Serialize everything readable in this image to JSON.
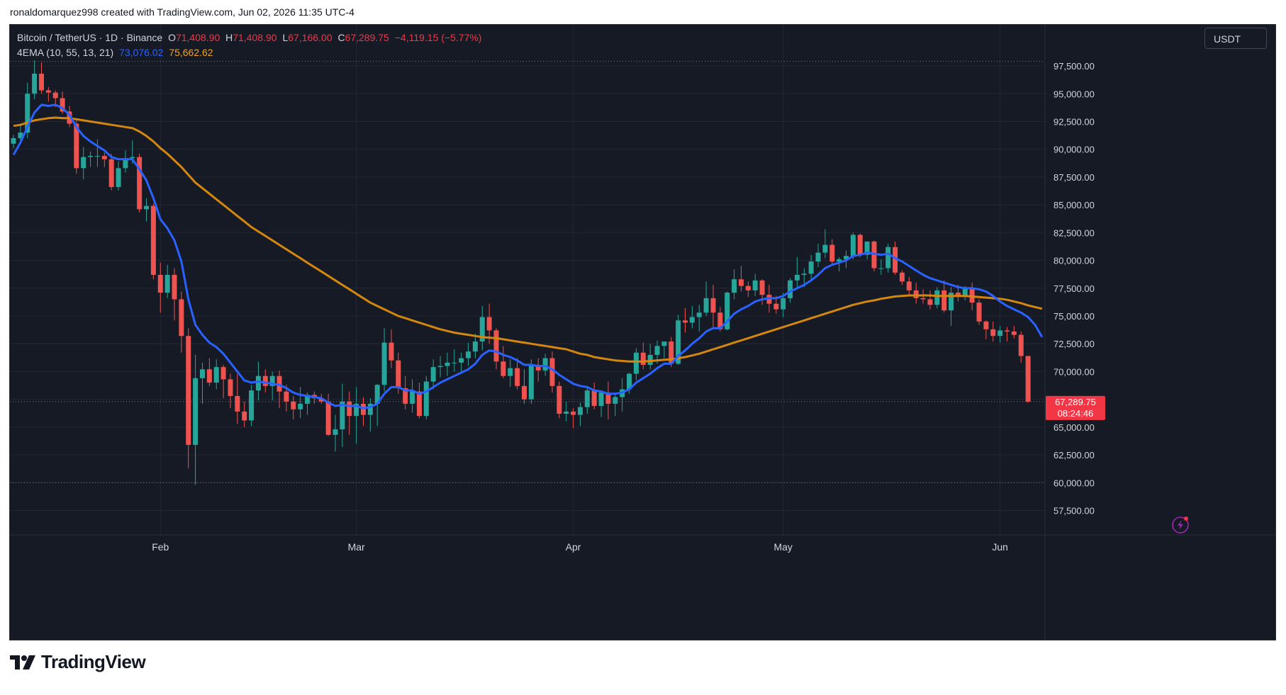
{
  "attribution": "ronaldomarquez998 created with TradingView.com, Jun 02, 2026 11:35 UTC-4",
  "brand": "TradingView",
  "currency_button": "USDT",
  "legend": {
    "symbol": "Bitcoin / TetherUS · 1D · Binance",
    "o_label": "O",
    "o_value": "71,408.90",
    "h_label": "H",
    "h_value": "71,408.90",
    "l_label": "L",
    "l_value": "67,166.00",
    "c_label": "C",
    "c_value": "67,289.75",
    "change": "−4,119.15 (−5.77%)",
    "indicator": "4EMA (10, 55, 13, 21)",
    "ema_fast_value": "73,076.02",
    "ema_slow_value": "75,662.62"
  },
  "price_label": {
    "price": "67,289.75",
    "countdown": "08:24:46"
  },
  "colors": {
    "background": "#161a25",
    "up": "#26a69a",
    "down": "#ef5350",
    "ema_fast": "#2962ff",
    "ema_slow": "#d4870f",
    "axis_text": "#d1d4dc",
    "grid": "#232734"
  },
  "icons": {
    "alert": "lightning-alert-icon",
    "logo": "tradingview-logo-icon"
  },
  "chart_data": {
    "type": "candlestick",
    "symbol": "Bitcoin / TetherUS",
    "timeframe": "1D",
    "exchange": "Binance",
    "y_ticks": [
      "97,500.00",
      "95,000.00",
      "92,500.00",
      "90,000.00",
      "87,500.00",
      "85,000.00",
      "82,500.00",
      "80,000.00",
      "77,500.00",
      "75,000.00",
      "72,500.00",
      "70,000.00",
      "67,500.00",
      "65,000.00",
      "62,500.00",
      "60,000.00",
      "57,500.00"
    ],
    "y_tick_values": [
      97500,
      95000,
      92500,
      90000,
      87500,
      85000,
      82500,
      80000,
      77500,
      75000,
      72500,
      70000,
      67500,
      65000,
      62500,
      60000,
      57500
    ],
    "ylim": [
      55300,
      101200
    ],
    "x_ticks": [
      {
        "label": "Feb",
        "index": 21
      },
      {
        "label": "Mar",
        "index": 49
      },
      {
        "label": "Apr",
        "index": 80
      },
      {
        "label": "May",
        "index": 110
      },
      {
        "label": "Jun",
        "index": 141
      }
    ],
    "dashed_lines": [
      97900,
      67289.75,
      60000
    ],
    "candles": [
      [
        90500,
        91300,
        90100,
        91000
      ],
      [
        91000,
        92300,
        90700,
        91500
      ],
      [
        91500,
        96000,
        91000,
        95000
      ],
      [
        95000,
        98000,
        94500,
        96800
      ],
      [
        96800,
        97800,
        95000,
        95300
      ],
      [
        95300,
        95600,
        94300,
        95100
      ],
      [
        95100,
        95300,
        93800,
        94600
      ],
      [
        94600,
        95200,
        93200,
        93400
      ],
      [
        93400,
        93900,
        92000,
        92300
      ],
      [
        92300,
        92600,
        87800,
        88300
      ],
      [
        88300,
        90200,
        87300,
        89300
      ],
      [
        89300,
        89800,
        88400,
        89400
      ],
      [
        89400,
        90900,
        88400,
        89400
      ],
      [
        89400,
        89700,
        88400,
        89100
      ],
      [
        89100,
        89600,
        86300,
        86600
      ],
      [
        86600,
        88900,
        86300,
        88300
      ],
      [
        88300,
        89900,
        87900,
        89200
      ],
      [
        89200,
        90800,
        88700,
        89300
      ],
      [
        89300,
        89600,
        84300,
        84600
      ],
      [
        84600,
        85600,
        83500,
        84900
      ],
      [
        84900,
        85100,
        78300,
        78700
      ],
      [
        78700,
        79800,
        75300,
        77100
      ],
      [
        77100,
        79600,
        76600,
        78700
      ],
      [
        78700,
        79300,
        74600,
        76500
      ],
      [
        76500,
        77200,
        71700,
        73200
      ],
      [
        73200,
        73900,
        61300,
        63400
      ],
      [
        63400,
        71500,
        59800,
        69400
      ],
      [
        69400,
        70800,
        67100,
        70200
      ],
      [
        70200,
        71200,
        68700,
        69000
      ],
      [
        69000,
        71100,
        68400,
        70400
      ],
      [
        70400,
        70600,
        67600,
        69300
      ],
      [
        69300,
        69800,
        66700,
        67800
      ],
      [
        67800,
        69800,
        65300,
        66400
      ],
      [
        66400,
        67300,
        65000,
        65600
      ],
      [
        65600,
        68800,
        65100,
        68300
      ],
      [
        68300,
        70900,
        67400,
        69600
      ],
      [
        69600,
        70200,
        68100,
        68700
      ],
      [
        68700,
        70000,
        67400,
        69600
      ],
      [
        69600,
        70100,
        66700,
        68200
      ],
      [
        68200,
        68800,
        66400,
        67300
      ],
      [
        67300,
        67800,
        65700,
        66600
      ],
      [
        66600,
        68600,
        65800,
        67100
      ],
      [
        67100,
        68100,
        66100,
        67900
      ],
      [
        67900,
        68200,
        67100,
        67600
      ],
      [
        67600,
        68000,
        67100,
        67300
      ],
      [
        67300,
        68000,
        64200,
        64300
      ],
      [
        64300,
        66100,
        62800,
        64800
      ],
      [
        64800,
        68900,
        63200,
        67300
      ],
      [
        67300,
        68200,
        64300,
        66000
      ],
      [
        66000,
        68600,
        63500,
        67100
      ],
      [
        67100,
        67700,
        65100,
        66100
      ],
      [
        66100,
        67600,
        64600,
        67100
      ],
      [
        67100,
        68900,
        65100,
        68800
      ],
      [
        68800,
        73900,
        68200,
        72600
      ],
      [
        72600,
        73800,
        70300,
        71000
      ],
      [
        71000,
        71700,
        68000,
        68500
      ],
      [
        68500,
        69600,
        66600,
        67100
      ],
      [
        67100,
        69300,
        66300,
        68200
      ],
      [
        68200,
        69000,
        65800,
        66000
      ],
      [
        66000,
        69600,
        65700,
        69100
      ],
      [
        69100,
        71100,
        68400,
        70400
      ],
      [
        70400,
        71400,
        69500,
        70500
      ],
      [
        70500,
        71700,
        69600,
        70800
      ],
      [
        70800,
        72000,
        70000,
        70800
      ],
      [
        70800,
        71700,
        70000,
        71200
      ],
      [
        71200,
        72600,
        70500,
        71800
      ],
      [
        71800,
        73400,
        71200,
        72700
      ],
      [
        72700,
        75900,
        71900,
        74900
      ],
      [
        74900,
        76100,
        72500,
        73700
      ],
      [
        73700,
        73900,
        70200,
        70900
      ],
      [
        70900,
        72300,
        69400,
        69600
      ],
      [
        69600,
        71100,
        68600,
        70300
      ],
      [
        70300,
        71200,
        68400,
        68700
      ],
      [
        68700,
        70200,
        67100,
        67500
      ],
      [
        67500,
        71100,
        67100,
        70600
      ],
      [
        70600,
        71200,
        69100,
        70100
      ],
      [
        70100,
        71600,
        69600,
        71200
      ],
      [
        71200,
        71800,
        68100,
        68700
      ],
      [
        68700,
        69100,
        65800,
        66200
      ],
      [
        66200,
        67300,
        65500,
        66400
      ],
      [
        66400,
        66700,
        64900,
        66100
      ],
      [
        66100,
        67200,
        65100,
        66800
      ],
      [
        66800,
        68700,
        66200,
        68300
      ],
      [
        68300,
        69000,
        66600,
        66900
      ],
      [
        66900,
        68300,
        65900,
        68100
      ],
      [
        68100,
        69100,
        65700,
        67100
      ],
      [
        67100,
        68100,
        66000,
        67700
      ],
      [
        67700,
        69400,
        66400,
        68400
      ],
      [
        68400,
        69900,
        68000,
        69800
      ],
      [
        69800,
        72100,
        69200,
        71700
      ],
      [
        71700,
        72600,
        70200,
        70600
      ],
      [
        70600,
        72500,
        70200,
        71500
      ],
      [
        71500,
        72800,
        70700,
        72300
      ],
      [
        72300,
        72700,
        71200,
        72700
      ],
      [
        72700,
        73100,
        70400,
        70700
      ],
      [
        70700,
        75100,
        70600,
        74600
      ],
      [
        74600,
        75700,
        73500,
        74400
      ],
      [
        74400,
        75900,
        73900,
        74900
      ],
      [
        74900,
        76000,
        73600,
        75300
      ],
      [
        75300,
        78100,
        75000,
        76600
      ],
      [
        76600,
        77800,
        74000,
        75300
      ],
      [
        75300,
        75800,
        73600,
        73800
      ],
      [
        73800,
        77200,
        73700,
        77100
      ],
      [
        77100,
        79200,
        76500,
        78300
      ],
      [
        78300,
        79500,
        77200,
        77700
      ],
      [
        77700,
        78100,
        76700,
        77300
      ],
      [
        77300,
        78800,
        76800,
        78200
      ],
      [
        78200,
        78300,
        76000,
        76900
      ],
      [
        76900,
        77800,
        75300,
        76100
      ],
      [
        76100,
        76800,
        75200,
        75600
      ],
      [
        75600,
        77100,
        74900,
        76600
      ],
      [
        76600,
        78400,
        76200,
        78200
      ],
      [
        78200,
        80300,
        77400,
        78700
      ],
      [
        78700,
        79300,
        77600,
        78800
      ],
      [
        78800,
        80500,
        78300,
        79900
      ],
      [
        79900,
        81500,
        79400,
        80700
      ],
      [
        80700,
        82800,
        80200,
        81400
      ],
      [
        81400,
        81900,
        79500,
        79900
      ],
      [
        79900,
        80300,
        79000,
        80100
      ],
      [
        80100,
        80900,
        79300,
        80400
      ],
      [
        80400,
        82500,
        80100,
        82300
      ],
      [
        82300,
        82400,
        80300,
        80500
      ],
      [
        80500,
        81700,
        80100,
        81700
      ],
      [
        81700,
        81800,
        79000,
        79300
      ],
      [
        79300,
        80100,
        78700,
        79300
      ],
      [
        79300,
        81500,
        78900,
        81200
      ],
      [
        81200,
        81700,
        78700,
        78900
      ],
      [
        78900,
        79100,
        77800,
        78100
      ],
      [
        78100,
        78500,
        76900,
        77300
      ],
      [
        77300,
        78000,
        76100,
        76600
      ],
      [
        76600,
        77400,
        76100,
        76500
      ],
      [
        76500,
        77300,
        75600,
        76000
      ],
      [
        76000,
        77600,
        75700,
        77300
      ],
      [
        77300,
        78200,
        75300,
        75500
      ],
      [
        75500,
        77600,
        74100,
        77100
      ],
      [
        77100,
        77800,
        76300,
        76800
      ],
      [
        76800,
        77700,
        76400,
        77500
      ],
      [
        77500,
        78000,
        75500,
        76200
      ],
      [
        76200,
        76500,
        74200,
        74500
      ],
      [
        74500,
        74600,
        72900,
        73800
      ],
      [
        73800,
        74500,
        72700,
        73200
      ],
      [
        73200,
        74100,
        72600,
        73700
      ],
      [
        73700,
        74000,
        72700,
        73600
      ],
      [
        73600,
        74100,
        73000,
        73300
      ],
      [
        73300,
        73600,
        70800,
        71400
      ],
      [
        71400,
        71400,
        67166,
        67290
      ]
    ],
    "ema_fast_name": "EMA",
    "ema_fast": [
      89500,
      90600,
      92000,
      93300,
      94000,
      93900,
      94000,
      93700,
      93100,
      92000,
      91200,
      90700,
      90300,
      89900,
      89300,
      89100,
      89100,
      89100,
      88200,
      87200,
      85600,
      83700,
      82900,
      81800,
      79900,
      76500,
      74200,
      73300,
      72600,
      72200,
      71600,
      70800,
      70000,
      69200,
      69000,
      69100,
      69000,
      68900,
      68800,
      68500,
      68100,
      67900,
      67800,
      67700,
      67600,
      67200,
      66900,
      67000,
      66900,
      66900,
      66700,
      66800,
      67100,
      68000,
      68600,
      68600,
      68300,
      68300,
      68000,
      68200,
      68600,
      69000,
      69300,
      69600,
      69900,
      70200,
      70700,
      71500,
      71900,
      71800,
      71500,
      71300,
      71000,
      70600,
      70600,
      70500,
      70500,
      70200,
      69700,
      69300,
      68900,
      68700,
      68600,
      68300,
      68200,
      68000,
      68000,
      68100,
      68400,
      69000,
      69400,
      69800,
      70300,
      70700,
      70700,
      71400,
      71900,
      72500,
      73000,
      73600,
      73900,
      73900,
      74500,
      75200,
      75600,
      75900,
      76300,
      76500,
      76600,
      76600,
      76800,
      77200,
      77500,
      77800,
      78200,
      78700,
      79300,
      79600,
      79800,
      80000,
      80400,
      80500,
      80700,
      80600,
      80500,
      80600,
      80200,
      79900,
      79500,
      79100,
      78700,
      78400,
      78200,
      78000,
      77800,
      77600,
      77500,
      77500,
      77400,
      77200,
      76800,
      76300,
      75900,
      75600,
      75300,
      74900,
      74200,
      73100
    ],
    "ema_slow_name": "EMA",
    "ema_slow": [
      92100,
      92200,
      92400,
      92600,
      92700,
      92800,
      92850,
      92800,
      92800,
      92700,
      92600,
      92500,
      92400,
      92300,
      92200,
      92100,
      92000,
      91900,
      91600,
      91200,
      90700,
      90100,
      89600,
      89000,
      88400,
      87700,
      87000,
      86500,
      86000,
      85500,
      85000,
      84500,
      84000,
      83500,
      83000,
      82600,
      82200,
      81800,
      81400,
      81000,
      80600,
      80200,
      79800,
      79400,
      79000,
      78600,
      78200,
      77800,
      77400,
      77000,
      76600,
      76200,
      75900,
      75600,
      75300,
      75000,
      74800,
      74600,
      74400,
      74200,
      74000,
      73800,
      73650,
      73500,
      73400,
      73300,
      73200,
      73100,
      73050,
      73000,
      72900,
      72800,
      72700,
      72600,
      72500,
      72400,
      72300,
      72200,
      72100,
      72000,
      71800,
      71600,
      71500,
      71300,
      71200,
      71100,
      71000,
      70950,
      70900,
      70900,
      70900,
      70950,
      71000,
      71050,
      71100,
      71200,
      71300,
      71450,
      71600,
      71800,
      72000,
      72200,
      72400,
      72600,
      72800,
      73000,
      73200,
      73400,
      73600,
      73800,
      74000,
      74200,
      74400,
      74600,
      74800,
      75000,
      75200,
      75400,
      75600,
      75800,
      76000,
      76150,
      76300,
      76400,
      76550,
      76650,
      76750,
      76800,
      76850,
      76850,
      76850,
      76850,
      76800,
      76800,
      76800,
      76800,
      76800,
      76750,
      76700,
      76650,
      76600,
      76550,
      76450,
      76300,
      76150,
      75950,
      75800,
      75650
    ]
  }
}
